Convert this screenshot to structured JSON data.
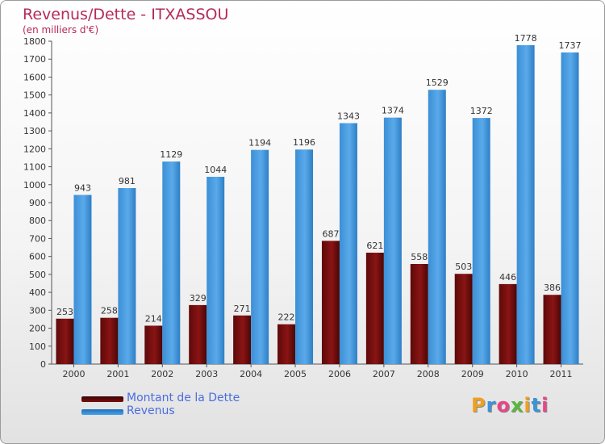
{
  "header": {
    "title": "Revenus/Dette - ITXASSOU",
    "subtitle": "(en milliers d'€)"
  },
  "legend": [
    {
      "label": "Montant de la Dette",
      "color": "#7a0e0e"
    },
    {
      "label": "Revenus",
      "color": "#3d93d8"
    }
  ],
  "logo": {
    "letters": [
      "P",
      "r",
      "o",
      "x",
      "i",
      "t",
      "i"
    ],
    "colors": [
      "#f0a020",
      "#3d93d8",
      "#e9458a",
      "#5ab83c",
      "#f0a020",
      "#3d93d8",
      "#e9458a"
    ]
  },
  "chart_data": {
    "type": "bar",
    "title": "Revenus/Dette - ITXASSOU",
    "subtitle": "(en milliers d'€)",
    "xlabel": "",
    "ylabel": "",
    "categories": [
      "2000",
      "2001",
      "2002",
      "2003",
      "2004",
      "2005",
      "2006",
      "2007",
      "2008",
      "2009",
      "2010",
      "2011"
    ],
    "series": [
      {
        "name": "Montant de la Dette",
        "color": "#7a0e0e",
        "values": [
          253,
          258,
          214,
          329,
          271,
          222,
          687,
          621,
          558,
          503,
          446,
          386
        ]
      },
      {
        "name": "Revenus",
        "color": "#3d93d8",
        "values": [
          943,
          981,
          1129,
          1044,
          1194,
          1196,
          1343,
          1374,
          1529,
          1372,
          1778,
          1737
        ]
      }
    ],
    "ylim": [
      0,
      1800
    ],
    "ytick_step": 100,
    "grid": false,
    "legend_position": "bottom-left"
  }
}
